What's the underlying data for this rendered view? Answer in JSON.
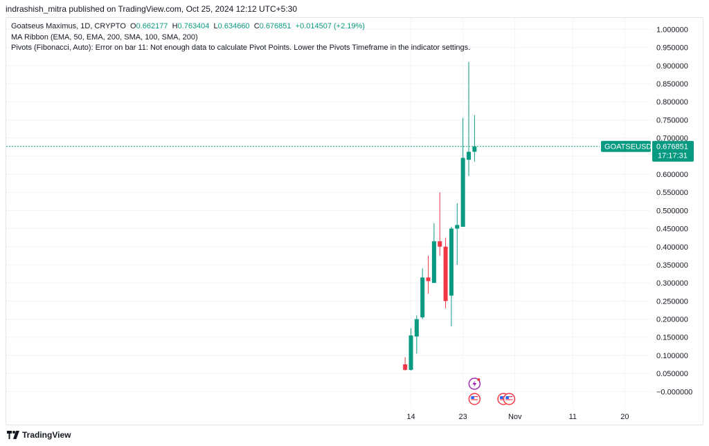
{
  "header": {
    "published": "indrashish_mitra published on TradingView.com, Oct 25, 2024 12:12 UTC+5:30"
  },
  "legend": {
    "symbol": "Goatseus Maximus, 1D, CRYPTO",
    "o_label": "O",
    "o": "0.662177",
    "h_label": "H",
    "h": "0.763404",
    "l_label": "L",
    "l": "0.634660",
    "c_label": "C",
    "c": "0.676851",
    "change": "+0.014507 (+2.19%)",
    "ma_ribbon": "MA Ribbon (EMA, 50, EMA, 200, SMA, 100, SMA, 200)",
    "pivots": "Pivots (Fibonacci, Auto): Error on bar 11: Not enough data to calculate Pivot Points. Lower the Pivots Timeframe in the indicator settings."
  },
  "price_tag": {
    "symbol": "GOATSEUSD",
    "price": "0.676851",
    "countdown": "17:17:31"
  },
  "colors": {
    "up": "#089981",
    "down": "#f23645",
    "grid": "#f0f3fa",
    "axis_text": "#131722",
    "tag": "#089981"
  },
  "footer": {
    "brand": "TradingView",
    "icon": "tradingview-logo-icon"
  },
  "chart_data": {
    "type": "candlestick",
    "ylim": [
      -0.03,
      1.02
    ],
    "y_ticks": [
      "1.000000",
      "0.950000",
      "0.900000",
      "0.850000",
      "0.800000",
      "0.750000",
      "0.700000",
      "0.650000",
      "0.600000",
      "0.550000",
      "0.500000",
      "0.450000",
      "0.400000",
      "0.350000",
      "0.300000",
      "0.250000",
      "0.200000",
      "0.150000",
      "0.100000",
      "0.050000",
      "−0.000000"
    ],
    "y_tick_values": [
      1.0,
      0.95,
      0.9,
      0.85,
      0.8,
      0.75,
      0.7,
      0.65,
      0.6,
      0.55,
      0.5,
      0.45,
      0.4,
      0.35,
      0.3,
      0.25,
      0.2,
      0.15,
      0.1,
      0.05,
      0.0
    ],
    "x_ticks": [
      {
        "label": "14",
        "day": 0
      },
      {
        "label": "23",
        "day": 9
      },
      {
        "label": "Nov",
        "day": 18
      },
      {
        "label": "11",
        "day": 28
      },
      {
        "label": "20",
        "day": 37
      }
    ],
    "x_day_range": [
      -70,
      41.5
    ],
    "candles": [
      {
        "day": -1,
        "o": 0.075,
        "h": 0.095,
        "l": 0.058,
        "c": 0.06
      },
      {
        "day": 0,
        "o": 0.06,
        "h": 0.175,
        "l": 0.058,
        "c": 0.155
      },
      {
        "day": 1,
        "o": 0.152,
        "h": 0.21,
        "l": 0.105,
        "c": 0.2
      },
      {
        "day": 2,
        "o": 0.205,
        "h": 0.34,
        "l": 0.2,
        "c": 0.315
      },
      {
        "day": 3,
        "o": 0.315,
        "h": 0.375,
        "l": 0.27,
        "c": 0.305
      },
      {
        "day": 4,
        "o": 0.3,
        "h": 0.465,
        "l": 0.3,
        "c": 0.415
      },
      {
        "day": 5,
        "o": 0.415,
        "h": 0.55,
        "l": 0.375,
        "c": 0.4
      },
      {
        "day": 6,
        "o": 0.4,
        "h": 0.425,
        "l": 0.23,
        "c": 0.25
      },
      {
        "day": 7,
        "o": 0.265,
        "h": 0.455,
        "l": 0.18,
        "c": 0.45
      },
      {
        "day": 8,
        "o": 0.45,
        "h": 0.52,
        "l": 0.35,
        "c": 0.46
      },
      {
        "day": 9,
        "o": 0.455,
        "h": 0.755,
        "l": 0.455,
        "c": 0.645
      },
      {
        "day": 10,
        "o": 0.64,
        "h": 0.91,
        "l": 0.595,
        "c": 0.662
      },
      {
        "day": 11,
        "o": 0.662177,
        "h": 0.763404,
        "l": 0.63466,
        "c": 0.676851
      }
    ],
    "last_price": 0.676851,
    "events": [
      {
        "type": "flash-event-icon",
        "day": 11,
        "row": 1
      },
      {
        "type": "us-flag-event-icon",
        "day": 11,
        "row": 2
      },
      {
        "type": "us-flag-event-icon",
        "day": 16,
        "row": 2
      },
      {
        "type": "us-flag-event-icon",
        "day": 17,
        "row": 2
      }
    ]
  }
}
